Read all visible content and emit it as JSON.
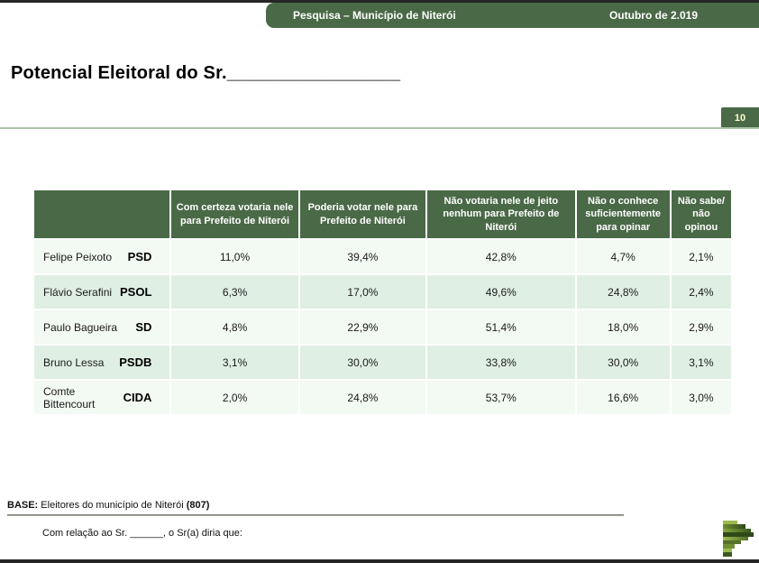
{
  "header": {
    "survey_title": "Pesquisa – Município de Niterói",
    "date": "Outubro de 2.019"
  },
  "page": {
    "title": "Potencial Eleitoral do Sr._________________",
    "number": "10"
  },
  "table": {
    "columns": [
      "Com certeza votaria nele para Prefeito de Niterói",
      "Poderia votar nele para Prefeito de Niterói",
      "Não votaria nele de jeito nenhum para Prefeito de Niterói",
      "Não o conhece suficientemente para opinar",
      "Não sabe/ não opinou"
    ],
    "rows": [
      {
        "name": "Felipe Peixoto",
        "party": "PSD",
        "values": [
          "11,0%",
          "39,4%",
          "42,8%",
          "4,7%",
          "2,1%"
        ]
      },
      {
        "name": "Flávio Serafini",
        "party": "PSOL",
        "values": [
          "6,3%",
          "17,0%",
          "49,6%",
          "24,8%",
          "2,4%"
        ]
      },
      {
        "name": "Paulo Bagueira",
        "party": "SD",
        "values": [
          "4,8%",
          "22,9%",
          "51,4%",
          "18,0%",
          "2,9%"
        ]
      },
      {
        "name": "Bruno Lessa",
        "party": "PSDB",
        "values": [
          "3,1%",
          "30,0%",
          "33,8%",
          "30,0%",
          "3,1%"
        ]
      },
      {
        "name": "Comte Bittencourt",
        "party": "CIDA",
        "values": [
          "2,0%",
          "24,8%",
          "53,7%",
          "16,6%",
          "3,0%"
        ]
      }
    ]
  },
  "footer": {
    "base_label": "BASE:",
    "base_text": " Eleitores do município de Niterói ",
    "base_count": "(807)",
    "question": "Com relação ao Sr. ______, o Sr(a) diria que:"
  },
  "colors": {
    "accent_green": "#4a6947",
    "row_light": "#f3f9f3",
    "row_alt": "#dfefe4",
    "badge_text": "#ffffcc",
    "rule_green": "#a9c4a4"
  }
}
